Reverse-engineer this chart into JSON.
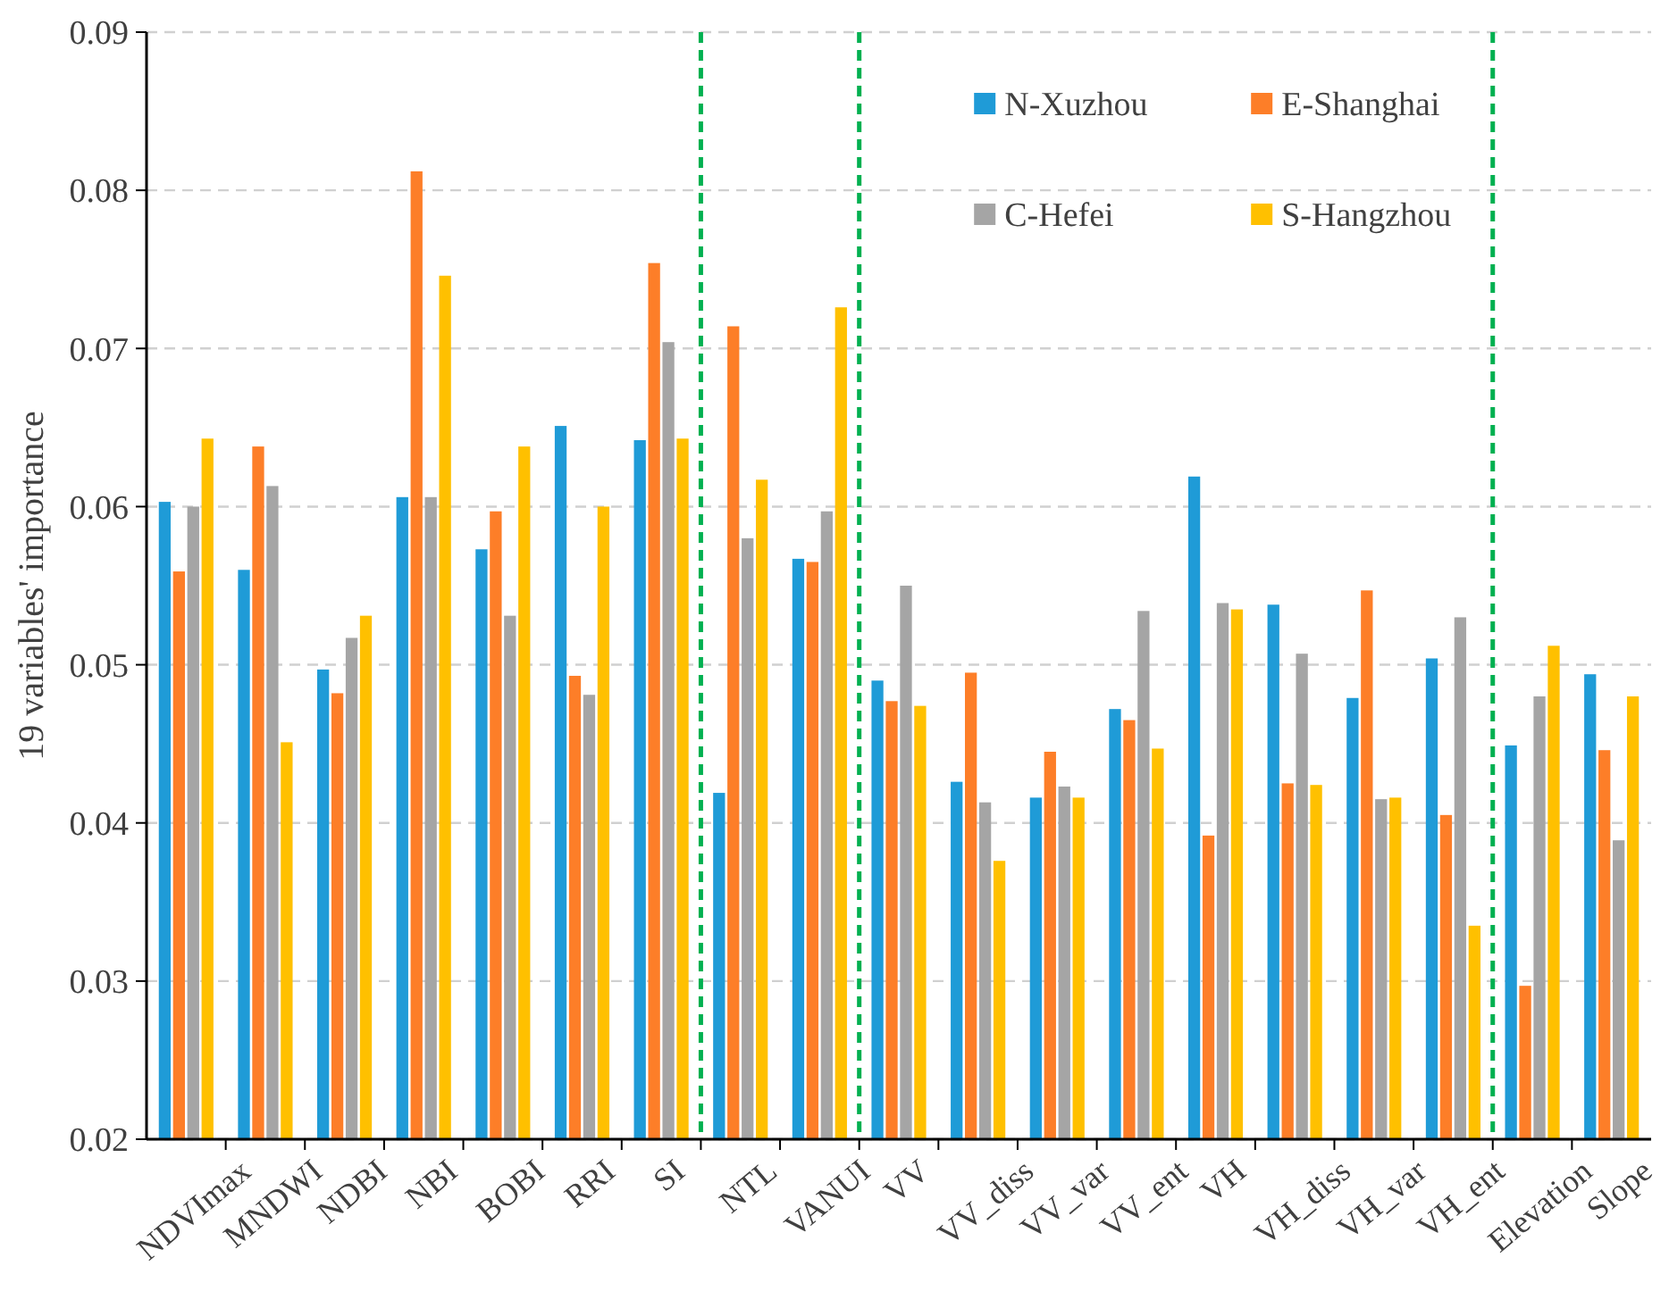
{
  "chart_data": {
    "type": "bar",
    "ylabel": "19 variables' importance",
    "categories": [
      "NDVImax",
      "MNDWI",
      "NDBI",
      "NBI",
      "BOBI",
      "RRI",
      "SI",
      "NTL",
      "VANUI",
      "VV",
      "VV_diss",
      "VV_var",
      "VV_ent",
      "VH",
      "VH_diss",
      "VH_var",
      "VH_ent",
      "Elevation",
      "Slope"
    ],
    "series": [
      {
        "name": "N-Xuzhou",
        "color": "#1f9bd7",
        "values": [
          0.0603,
          0.056,
          0.0497,
          0.0606,
          0.0573,
          0.0651,
          0.0642,
          0.0419,
          0.0567,
          0.049,
          0.0426,
          0.0416,
          0.0472,
          0.0619,
          0.0538,
          0.0479,
          0.0504,
          0.0449,
          0.0494
        ]
      },
      {
        "name": "E-Shanghai",
        "color": "#fd7e28",
        "values": [
          0.0559,
          0.0638,
          0.0482,
          0.0812,
          0.0597,
          0.0493,
          0.0754,
          0.0714,
          0.0565,
          0.0477,
          0.0495,
          0.0445,
          0.0465,
          0.0392,
          0.0425,
          0.0547,
          0.0405,
          0.0297,
          0.0446
        ]
      },
      {
        "name": "C-Hefei",
        "color": "#a5a5a5",
        "values": [
          0.06,
          0.0613,
          0.0517,
          0.0606,
          0.0531,
          0.0481,
          0.0704,
          0.058,
          0.0597,
          0.055,
          0.0413,
          0.0423,
          0.0534,
          0.0539,
          0.0507,
          0.0415,
          0.053,
          0.048,
          0.0389
        ]
      },
      {
        "name": "S-Hangzhou",
        "color": "#ffc000",
        "values": [
          0.0643,
          0.0451,
          0.0531,
          0.0746,
          0.0638,
          0.06,
          0.0643,
          0.0617,
          0.0726,
          0.0474,
          0.0376,
          0.0416,
          0.0447,
          0.0535,
          0.0424,
          0.0416,
          0.0335,
          0.0512,
          0.048
        ]
      }
    ],
    "ylim": [
      0.02,
      0.09
    ],
    "yticks": [
      0.02,
      0.03,
      0.04,
      0.05,
      0.06,
      0.07,
      0.08,
      0.09
    ],
    "grid": "y",
    "legend": "top right"
  }
}
